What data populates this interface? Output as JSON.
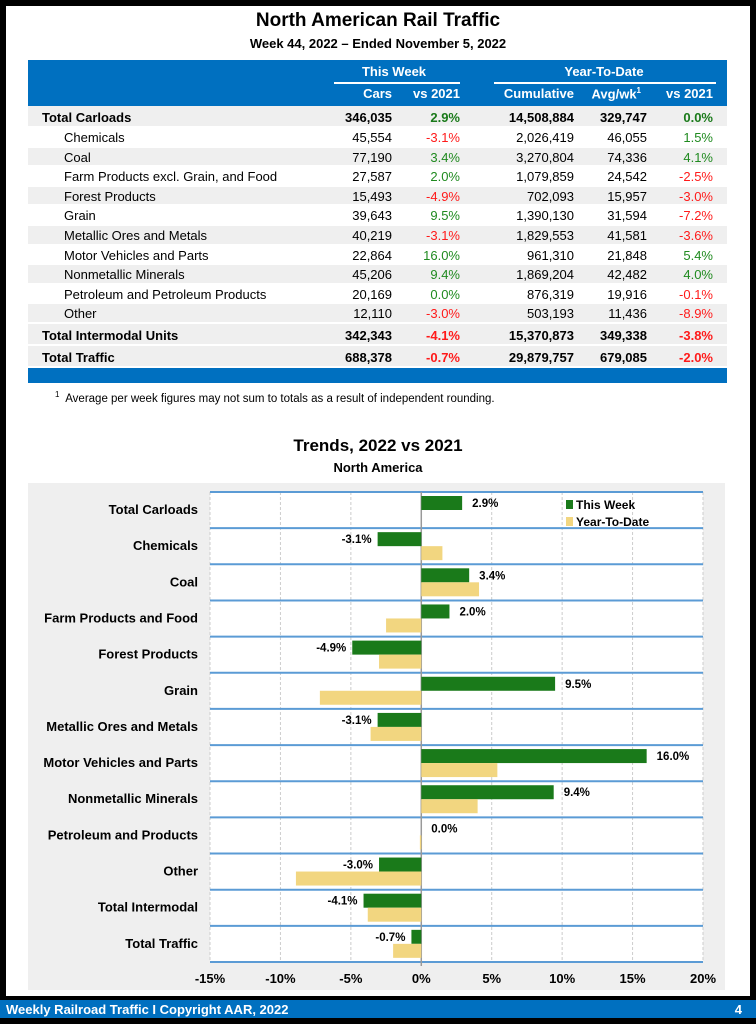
{
  "header": {
    "title": "North American Rail Traffic",
    "subtitle": "Week 44, 2022 – Ended November 5, 2022"
  },
  "table": {
    "group_headers": [
      "This Week",
      "Year-To-Date"
    ],
    "columns": [
      "Cars",
      "vs 2021",
      "Cumulative",
      "Avg/wk",
      "vs 2021"
    ],
    "avg_footnote_mark": "1",
    "rows": [
      {
        "label": "Total Carloads",
        "cars": "346,035",
        "week_vs": "2.9%",
        "cumulative": "14,508,884",
        "avg": "329,747",
        "ytd_vs": "0.0%",
        "total": true
      },
      {
        "label": "Chemicals",
        "cars": "45,554",
        "week_vs": "-3.1%",
        "cumulative": "2,026,419",
        "avg": "46,055",
        "ytd_vs": "1.5%"
      },
      {
        "label": "Coal",
        "cars": "77,190",
        "week_vs": "3.4%",
        "cumulative": "3,270,804",
        "avg": "74,336",
        "ytd_vs": "4.1%"
      },
      {
        "label": "Farm Products excl. Grain, and Food",
        "cars": "27,587",
        "week_vs": "2.0%",
        "cumulative": "1,079,859",
        "avg": "24,542",
        "ytd_vs": "-2.5%"
      },
      {
        "label": "Forest Products",
        "cars": "15,493",
        "week_vs": "-4.9%",
        "cumulative": "702,093",
        "avg": "15,957",
        "ytd_vs": "-3.0%"
      },
      {
        "label": "Grain",
        "cars": "39,643",
        "week_vs": "9.5%",
        "cumulative": "1,390,130",
        "avg": "31,594",
        "ytd_vs": "-7.2%"
      },
      {
        "label": "Metallic Ores and Metals",
        "cars": "40,219",
        "week_vs": "-3.1%",
        "cumulative": "1,829,553",
        "avg": "41,581",
        "ytd_vs": "-3.6%"
      },
      {
        "label": "Motor Vehicles and Parts",
        "cars": "22,864",
        "week_vs": "16.0%",
        "cumulative": "961,310",
        "avg": "21,848",
        "ytd_vs": "5.4%"
      },
      {
        "label": "Nonmetallic Minerals",
        "cars": "45,206",
        "week_vs": "9.4%",
        "cumulative": "1,869,204",
        "avg": "42,482",
        "ytd_vs": "4.0%"
      },
      {
        "label": "Petroleum and Petroleum Products",
        "cars": "20,169",
        "week_vs": "0.0%",
        "cumulative": "876,319",
        "avg": "19,916",
        "ytd_vs": "-0.1%"
      },
      {
        "label": "Other",
        "cars": "12,110",
        "week_vs": "-3.0%",
        "cumulative": "503,193",
        "avg": "11,436",
        "ytd_vs": "-8.9%"
      },
      {
        "label": "Total Intermodal Units",
        "cars": "342,343",
        "week_vs": "-4.1%",
        "cumulative": "15,370,873",
        "avg": "349,338",
        "ytd_vs": "-3.8%",
        "total": true
      },
      {
        "label": "Total Traffic",
        "cars": "688,378",
        "week_vs": "-0.7%",
        "cumulative": "29,879,757",
        "avg": "679,085",
        "ytd_vs": "-2.0%",
        "total": true
      }
    ],
    "footnote_mark": "1",
    "footnote": "Average per week figures may not sum to totals as a result of independent rounding."
  },
  "chart_data": {
    "type": "bar",
    "orientation": "horizontal",
    "title": "Trends, 2022 vs 2021",
    "subtitle": "North America",
    "categories": [
      "Total Carloads",
      "Chemicals",
      "Coal",
      "Farm Products and Food",
      "Forest Products",
      "Grain",
      "Metallic Ores and Metals",
      "Motor Vehicles and Parts",
      "Nonmetallic Minerals",
      "Petroleum and Products",
      "Other",
      "Total Intermodal",
      "Total Traffic"
    ],
    "series": [
      {
        "name": "This Week",
        "color": "#1a7a1a",
        "values": [
          2.9,
          -3.1,
          3.4,
          2.0,
          -4.9,
          9.5,
          -3.1,
          16.0,
          9.4,
          0.0,
          -3.0,
          -4.1,
          -0.7
        ],
        "labels": [
          "2.9%",
          "-3.1%",
          "3.4%",
          "2.0%",
          "-4.9%",
          "9.5%",
          "-3.1%",
          "16.0%",
          "9.4%",
          "0.0%",
          "-3.0%",
          "-4.1%",
          "-0.7%"
        ]
      },
      {
        "name": "Year-To-Date",
        "color": "#f2d680",
        "values": [
          0.0,
          1.5,
          4.1,
          -2.5,
          -3.0,
          -7.2,
          -3.6,
          5.4,
          4.0,
          -0.1,
          -8.9,
          -3.8,
          -2.0
        ]
      }
    ],
    "xlim": [
      -15,
      20
    ],
    "xticks": [
      "-15%",
      "-10%",
      "-5%",
      "0%",
      "5%",
      "10%",
      "15%",
      "20%"
    ],
    "legend": "top-right",
    "grid": true
  },
  "footer": {
    "text": "Weekly Railroad Traffic I Copyright AAR, 2022",
    "page": "4"
  },
  "colors": {
    "brand_blue": "#0070c0",
    "positive": "#1f8a1f",
    "negative": "#ff1a1a"
  }
}
